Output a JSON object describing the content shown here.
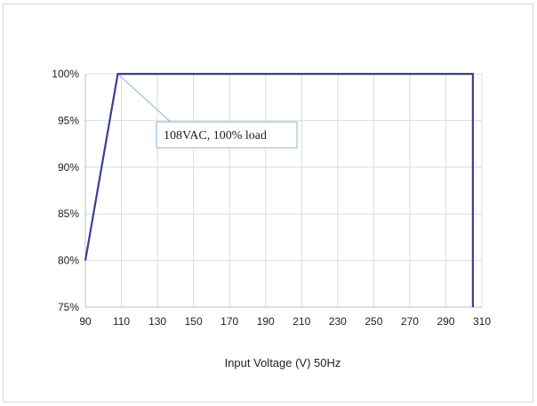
{
  "chart_data": {
    "type": "line",
    "title": "",
    "xlabel": "Input Voltage (V) 50Hz",
    "ylabel": "",
    "xlim": [
      90,
      310
    ],
    "ylim": [
      75,
      100
    ],
    "x_ticks": [
      90,
      110,
      130,
      150,
      170,
      190,
      210,
      230,
      250,
      270,
      290,
      310
    ],
    "y_ticks": [
      75,
      80,
      85,
      90,
      95,
      100
    ],
    "y_tick_labels": [
      "75%",
      "80%",
      "85%",
      "90%",
      "95%",
      "100%"
    ],
    "grid": true,
    "series": [
      {
        "color": "#3a3f94",
        "points": [
          [
            90,
            80
          ],
          [
            108,
            100
          ],
          [
            305,
            100
          ],
          [
            305,
            75
          ]
        ]
      }
    ],
    "annotations": [
      {
        "text": "108VAC, 100% load",
        "x": 108,
        "y": 100
      }
    ]
  }
}
